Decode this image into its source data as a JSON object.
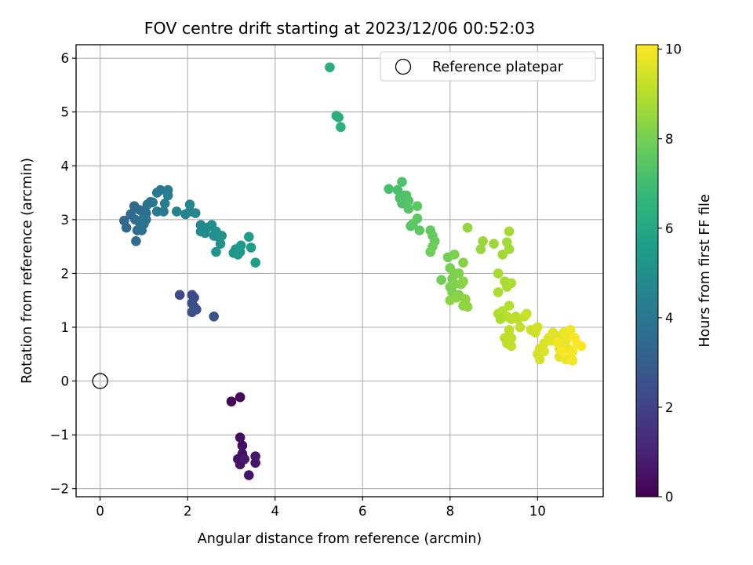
{
  "chart_data": {
    "type": "scatter",
    "title": "FOV centre drift starting at 2023/12/06 00:52:03",
    "xlabel": "Angular distance from reference (arcmin)",
    "ylabel": "Rotation from reference (arcmin)",
    "xlim": [
      -0.55,
      11.5
    ],
    "ylim": [
      -2.15,
      6.25
    ],
    "xticks": [
      0,
      2,
      4,
      6,
      8,
      10
    ],
    "yticks": [
      -2,
      -1,
      0,
      1,
      2,
      3,
      4,
      5,
      6
    ],
    "grid": true,
    "colormap": "viridis",
    "colorbar": {
      "label": "Hours from first FF file",
      "range": [
        0,
        10.1
      ],
      "ticks": [
        0,
        2,
        4,
        6,
        8,
        10
      ]
    },
    "legend": {
      "location": "top-right",
      "entries": [
        "Reference platepar"
      ]
    },
    "reference_point": {
      "x": 0,
      "y": 0
    },
    "points": [
      [
        3.0,
        -0.38,
        0.1
      ],
      [
        3.2,
        -0.3,
        0.15
      ],
      [
        3.2,
        -1.05,
        0.3
      ],
      [
        3.25,
        -1.2,
        0.35
      ],
      [
        3.25,
        -1.35,
        0.4
      ],
      [
        3.15,
        -1.45,
        0.45
      ],
      [
        3.2,
        -1.55,
        0.5
      ],
      [
        3.4,
        -1.75,
        0.55
      ],
      [
        3.55,
        -1.4,
        0.6
      ],
      [
        3.55,
        -1.52,
        0.65
      ],
      [
        3.3,
        -1.45,
        0.7
      ],
      [
        1.82,
        1.6,
        2.2
      ],
      [
        2.1,
        1.6,
        2.25
      ],
      [
        2.15,
        1.55,
        2.3
      ],
      [
        2.1,
        1.45,
        2.35
      ],
      [
        2.15,
        1.38,
        2.4
      ],
      [
        2.2,
        1.33,
        2.45
      ],
      [
        2.1,
        1.28,
        2.5
      ],
      [
        2.6,
        1.2,
        2.55
      ],
      [
        0.55,
        2.98,
        3.4
      ],
      [
        0.6,
        2.85,
        3.45
      ],
      [
        0.7,
        3.1,
        3.5
      ],
      [
        0.78,
        3.25,
        3.55
      ],
      [
        0.8,
        3.0,
        3.55
      ],
      [
        0.85,
        2.8,
        3.6
      ],
      [
        0.82,
        2.6,
        3.6
      ],
      [
        0.9,
        3.18,
        3.65
      ],
      [
        0.9,
        2.95,
        3.65
      ],
      [
        0.95,
        2.8,
        3.7
      ],
      [
        1.0,
        3.05,
        3.7
      ],
      [
        1.05,
        3.12,
        3.75
      ],
      [
        1.0,
        2.92,
        3.8
      ],
      [
        1.05,
        3.0,
        3.8
      ],
      [
        1.08,
        3.28,
        3.85
      ],
      [
        1.15,
        3.33,
        3.9
      ],
      [
        1.2,
        3.32,
        3.95
      ],
      [
        1.3,
        3.5,
        4.0
      ],
      [
        1.38,
        3.55,
        4.05
      ],
      [
        1.3,
        3.15,
        4.1
      ],
      [
        1.45,
        3.15,
        4.15
      ],
      [
        1.48,
        3.3,
        4.2
      ],
      [
        1.55,
        3.55,
        4.25
      ],
      [
        1.55,
        3.45,
        4.3
      ],
      [
        1.75,
        3.15,
        4.4
      ],
      [
        1.95,
        3.1,
        4.5
      ],
      [
        2.05,
        3.28,
        4.55
      ],
      [
        2.05,
        3.15,
        4.6
      ],
      [
        2.18,
        3.12,
        4.65
      ],
      [
        2.3,
        2.9,
        4.7
      ],
      [
        2.3,
        2.78,
        4.75
      ],
      [
        2.4,
        2.75,
        4.8
      ],
      [
        2.45,
        2.85,
        4.85
      ],
      [
        2.55,
        2.9,
        4.9
      ],
      [
        2.6,
        2.7,
        4.95
      ],
      [
        2.65,
        2.78,
        5.0
      ],
      [
        2.7,
        2.68,
        5.05
      ],
      [
        2.75,
        2.55,
        5.1
      ],
      [
        2.78,
        2.7,
        5.15
      ],
      [
        2.65,
        2.4,
        5.2
      ],
      [
        3.05,
        2.38,
        5.25
      ],
      [
        3.1,
        2.45,
        5.3
      ],
      [
        3.15,
        2.35,
        5.35
      ],
      [
        3.2,
        2.4,
        5.4
      ],
      [
        3.22,
        2.52,
        5.45
      ],
      [
        3.4,
        2.68,
        5.5
      ],
      [
        3.45,
        2.48,
        5.55
      ],
      [
        3.55,
        2.2,
        5.6
      ],
      [
        5.25,
        5.83,
        6.2
      ],
      [
        5.4,
        4.93,
        6.3
      ],
      [
        5.45,
        4.9,
        6.35
      ],
      [
        5.5,
        4.72,
        6.4
      ],
      [
        6.6,
        3.57,
        7.1
      ],
      [
        6.8,
        3.55,
        7.15
      ],
      [
        6.85,
        3.4,
        7.2
      ],
      [
        6.9,
        3.7,
        7.25
      ],
      [
        6.95,
        3.45,
        7.25
      ],
      [
        6.9,
        3.3,
        7.3
      ],
      [
        7.0,
        3.45,
        7.35
      ],
      [
        7.05,
        3.35,
        7.4
      ],
      [
        7.05,
        3.2,
        7.4
      ],
      [
        7.1,
        2.88,
        7.45
      ],
      [
        7.15,
        2.92,
        7.5
      ],
      [
        7.25,
        3.02,
        7.55
      ],
      [
        7.3,
        2.8,
        7.55
      ],
      [
        7.25,
        3.25,
        7.6
      ],
      [
        7.55,
        2.8,
        7.65
      ],
      [
        7.6,
        2.7,
        7.7
      ],
      [
        7.65,
        2.6,
        7.75
      ],
      [
        7.6,
        2.5,
        7.8
      ],
      [
        7.55,
        2.4,
        7.85
      ],
      [
        7.8,
        1.88,
        7.9
      ],
      [
        7.95,
        2.3,
        7.95
      ],
      [
        8.0,
        2.1,
        8.0
      ],
      [
        8.05,
        1.9,
        8.0
      ],
      [
        8.0,
        1.75,
        8.05
      ],
      [
        8.05,
        1.65,
        8.05
      ],
      [
        8.1,
        2.35,
        8.1
      ],
      [
        8.1,
        2.0,
        8.1
      ],
      [
        8.1,
        1.8,
        8.15
      ],
      [
        8.2,
        2.0,
        8.15
      ],
      [
        8.2,
        1.6,
        8.2
      ],
      [
        8.25,
        1.8,
        8.25
      ],
      [
        8.3,
        2.2,
        8.25
      ],
      [
        8.3,
        1.85,
        8.3
      ],
      [
        8.0,
        1.5,
        8.3
      ],
      [
        8.15,
        1.55,
        8.35
      ],
      [
        8.3,
        1.4,
        8.35
      ],
      [
        8.35,
        1.52,
        8.4
      ],
      [
        8.4,
        1.38,
        8.4
      ],
      [
        8.4,
        2.85,
        8.45
      ],
      [
        8.7,
        2.45,
        8.5
      ],
      [
        8.75,
        2.6,
        8.55
      ],
      [
        9.0,
        2.55,
        8.6
      ],
      [
        9.2,
        2.35,
        8.65
      ],
      [
        9.3,
        2.58,
        8.7
      ],
      [
        9.35,
        2.45,
        8.7
      ],
      [
        9.35,
        2.78,
        8.75
      ],
      [
        9.1,
        2.0,
        8.75
      ],
      [
        9.25,
        1.85,
        8.8
      ],
      [
        9.3,
        1.75,
        8.8
      ],
      [
        9.4,
        1.82,
        8.85
      ],
      [
        9.1,
        1.65,
        8.85
      ],
      [
        9.1,
        1.25,
        8.9
      ],
      [
        9.15,
        1.15,
        8.9
      ],
      [
        9.2,
        1.3,
        8.95
      ],
      [
        9.35,
        1.4,
        8.95
      ],
      [
        9.3,
        1.2,
        9.0
      ],
      [
        9.4,
        1.15,
        9.05
      ],
      [
        9.5,
        1.2,
        9.05
      ],
      [
        9.55,
        1.15,
        9.1
      ],
      [
        9.35,
        0.95,
        9.1
      ],
      [
        9.4,
        0.8,
        9.15
      ],
      [
        9.25,
        0.8,
        9.15
      ],
      [
        9.3,
        0.7,
        9.2
      ],
      [
        9.4,
        0.65,
        9.2
      ],
      [
        9.6,
        1.0,
        9.25
      ],
      [
        9.7,
        1.2,
        9.25
      ],
      [
        9.75,
        1.25,
        9.3
      ],
      [
        9.85,
        0.95,
        9.35
      ],
      [
        9.95,
        0.9,
        9.4
      ],
      [
        10.0,
        1.0,
        9.45
      ],
      [
        10.0,
        0.5,
        9.45
      ],
      [
        10.05,
        0.4,
        9.5
      ],
      [
        10.05,
        0.6,
        9.5
      ],
      [
        10.15,
        0.55,
        9.55
      ],
      [
        10.15,
        0.7,
        9.55
      ],
      [
        10.25,
        0.8,
        9.6
      ],
      [
        10.3,
        0.75,
        9.6
      ],
      [
        10.35,
        0.9,
        9.65
      ],
      [
        10.4,
        0.85,
        9.65
      ],
      [
        10.5,
        0.6,
        9.7
      ],
      [
        10.5,
        0.45,
        9.7
      ],
      [
        10.55,
        0.7,
        9.75
      ],
      [
        10.6,
        0.8,
        9.75
      ],
      [
        10.6,
        0.9,
        9.8
      ],
      [
        10.65,
        0.75,
        9.8
      ],
      [
        10.7,
        0.85,
        9.85
      ],
      [
        10.7,
        0.6,
        9.85
      ],
      [
        10.75,
        0.95,
        9.9
      ],
      [
        10.65,
        0.4,
        9.9
      ],
      [
        10.75,
        0.45,
        9.95
      ],
      [
        10.8,
        0.38,
        9.95
      ],
      [
        10.8,
        0.55,
        10.0
      ],
      [
        10.85,
        0.8,
        10.0
      ],
      [
        10.9,
        0.7,
        10.05
      ],
      [
        11.0,
        0.65,
        10.05
      ],
      [
        10.55,
        0.55,
        10.0
      ],
      [
        10.45,
        0.72,
        9.9
      ]
    ]
  }
}
